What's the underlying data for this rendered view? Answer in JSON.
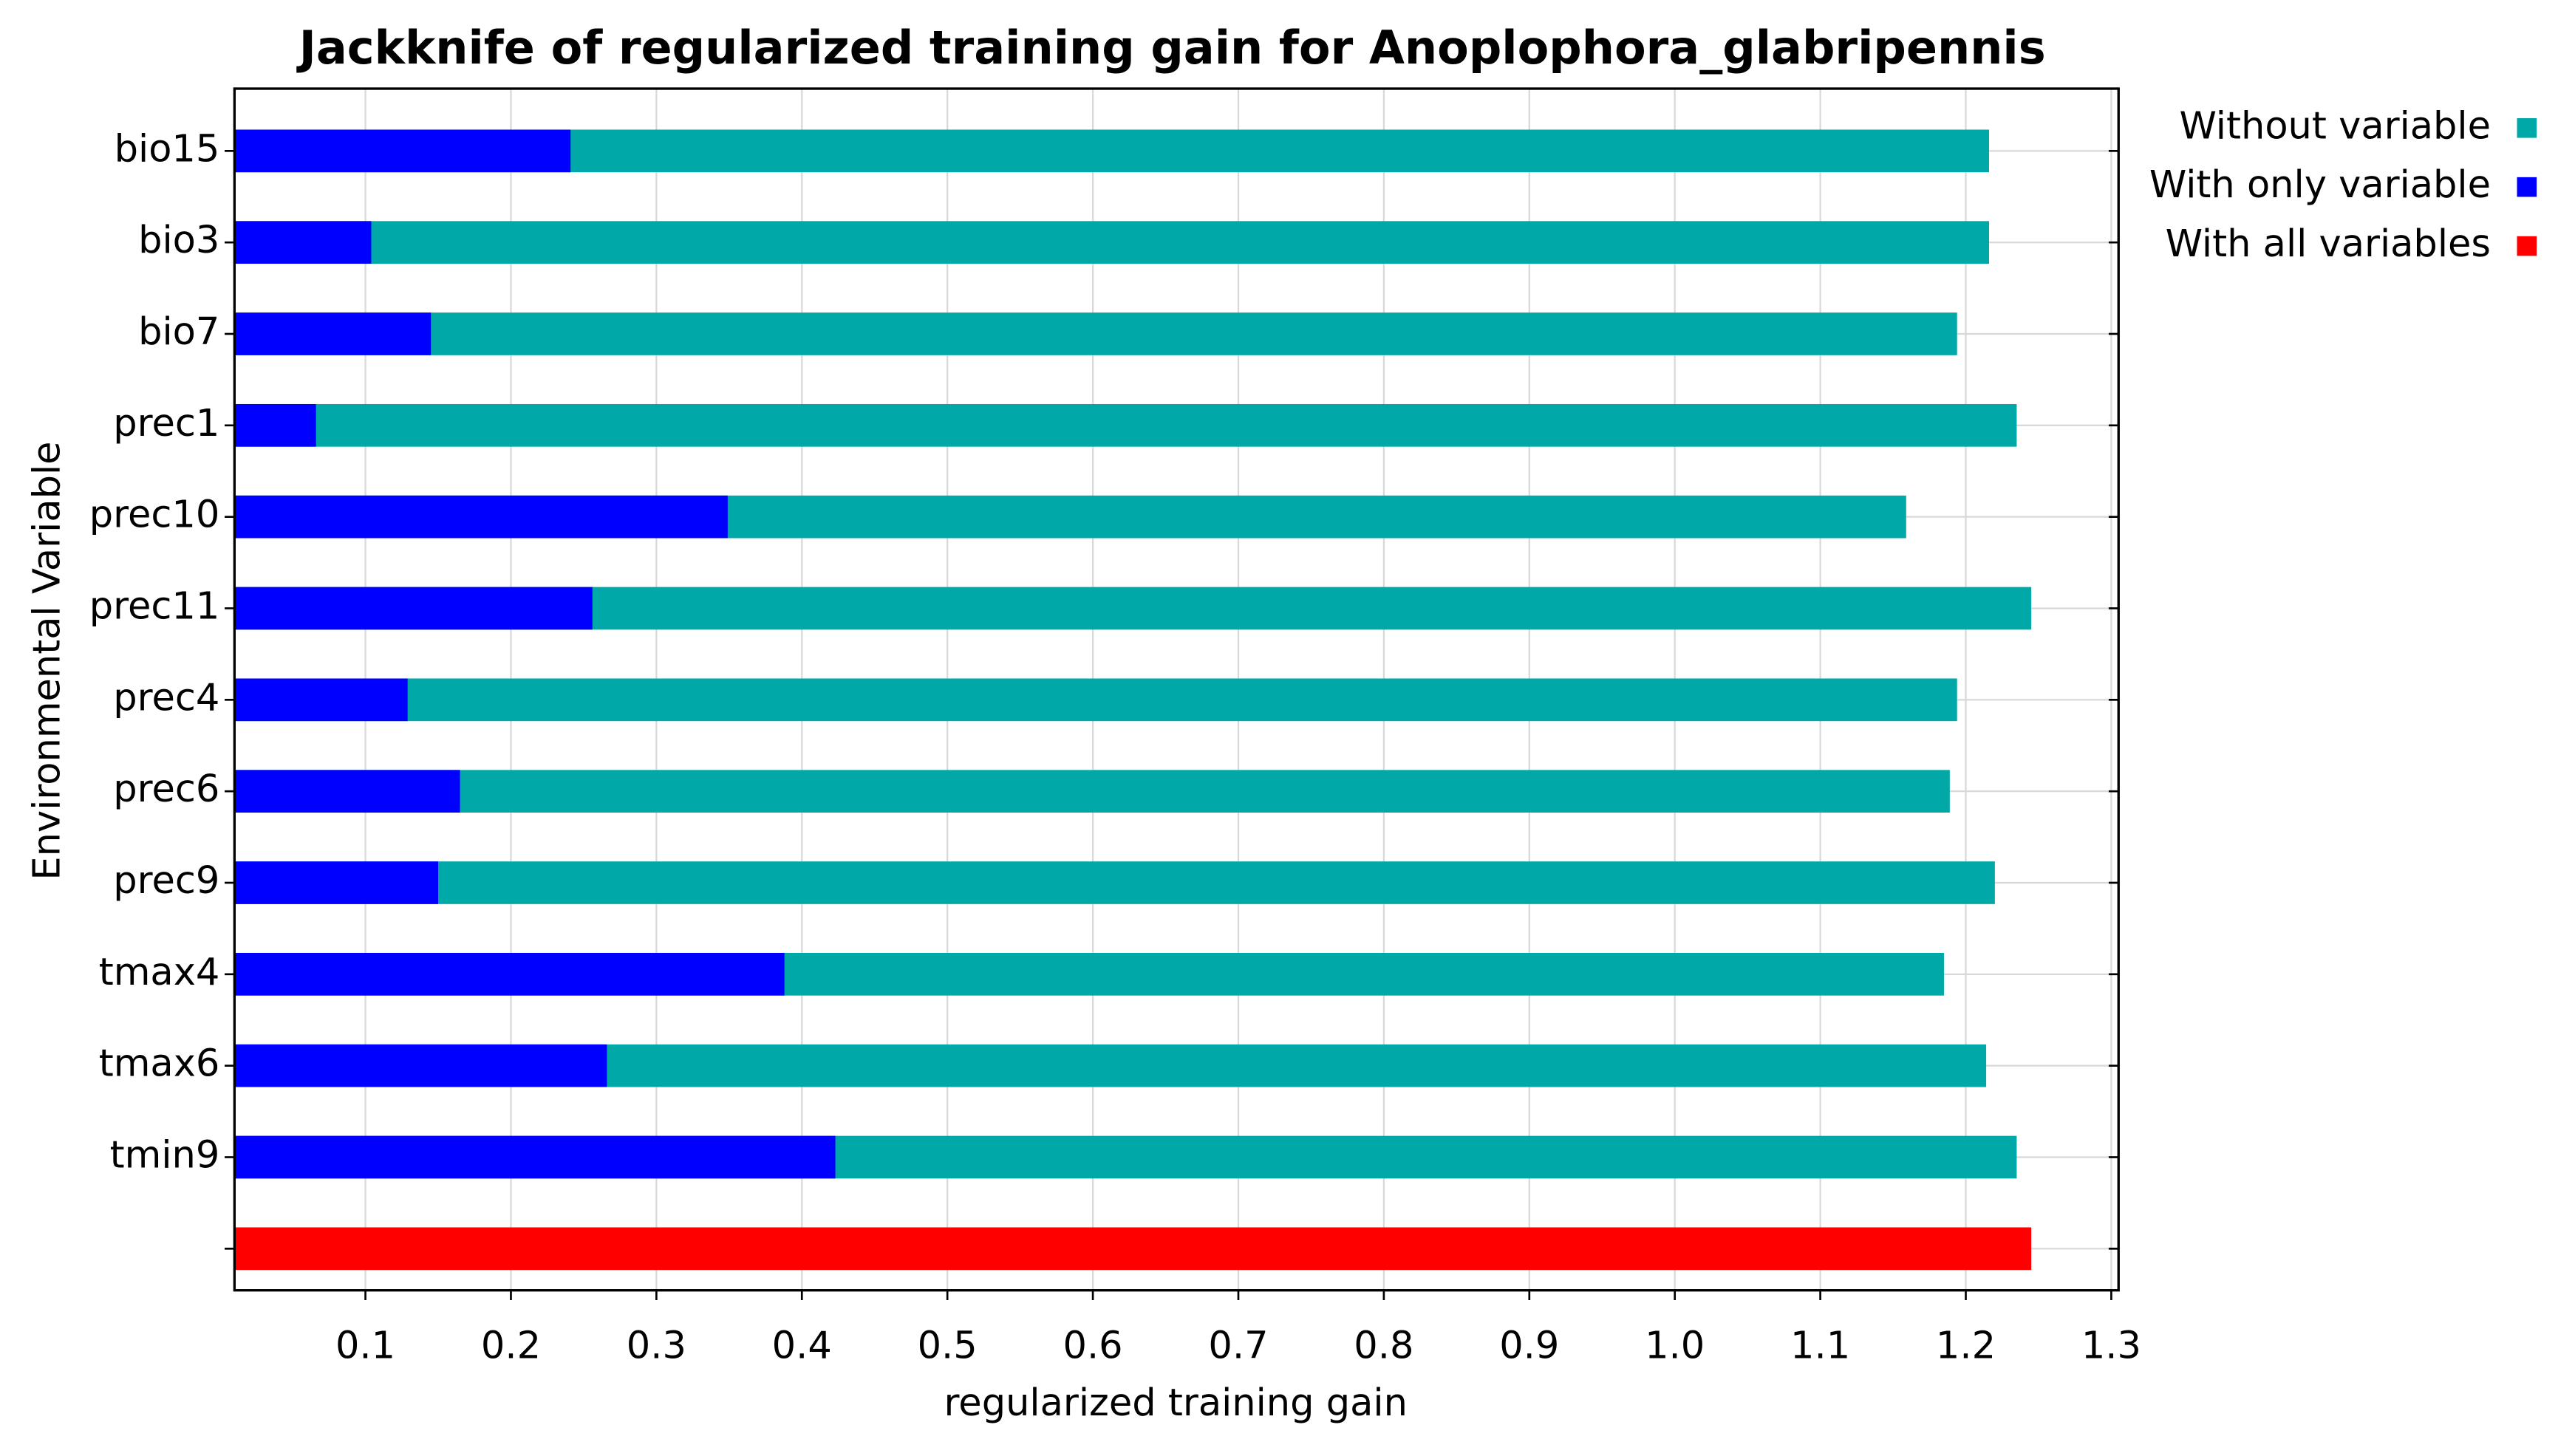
{
  "chart_data": {
    "type": "bar",
    "orientation": "horizontal",
    "title": "Jackknife of regularized training gain for Anoplophora_glabripennis",
    "xlabel": "regularized training gain",
    "ylabel": "Environmental Variable",
    "categories": [
      "bio15",
      "bio3",
      "bio7",
      "prec1",
      "prec10",
      "prec11",
      "prec4",
      "prec6",
      "prec9",
      "tmax4",
      "tmax6",
      "tmin9",
      null
    ],
    "series": [
      {
        "name": "Without variable",
        "color": "#00a8a8",
        "values": [
          1.216,
          1.216,
          1.194,
          1.235,
          1.159,
          1.245,
          1.194,
          1.189,
          1.22,
          1.185,
          1.214,
          1.235,
          null
        ]
      },
      {
        "name": "With only variable",
        "color": "#0000ff",
        "values": [
          0.241,
          0.104,
          0.145,
          0.066,
          0.349,
          0.256,
          0.129,
          0.165,
          0.15,
          0.388,
          0.266,
          0.423,
          null
        ]
      },
      {
        "name": "With all variables",
        "color": "#ff0000",
        "values": [
          null,
          null,
          null,
          null,
          null,
          null,
          null,
          null,
          null,
          null,
          null,
          null,
          1.245
        ]
      }
    ],
    "xlim": [
      0.01,
      1.305
    ],
    "xticks": [
      0.1,
      0.2,
      0.3,
      0.4,
      0.5,
      0.6,
      0.7,
      0.8,
      0.9,
      {
        "value": 1,
        "label": "1.0"
      },
      1.1,
      1.2,
      1.3
    ],
    "grid": true,
    "legend": "right"
  }
}
